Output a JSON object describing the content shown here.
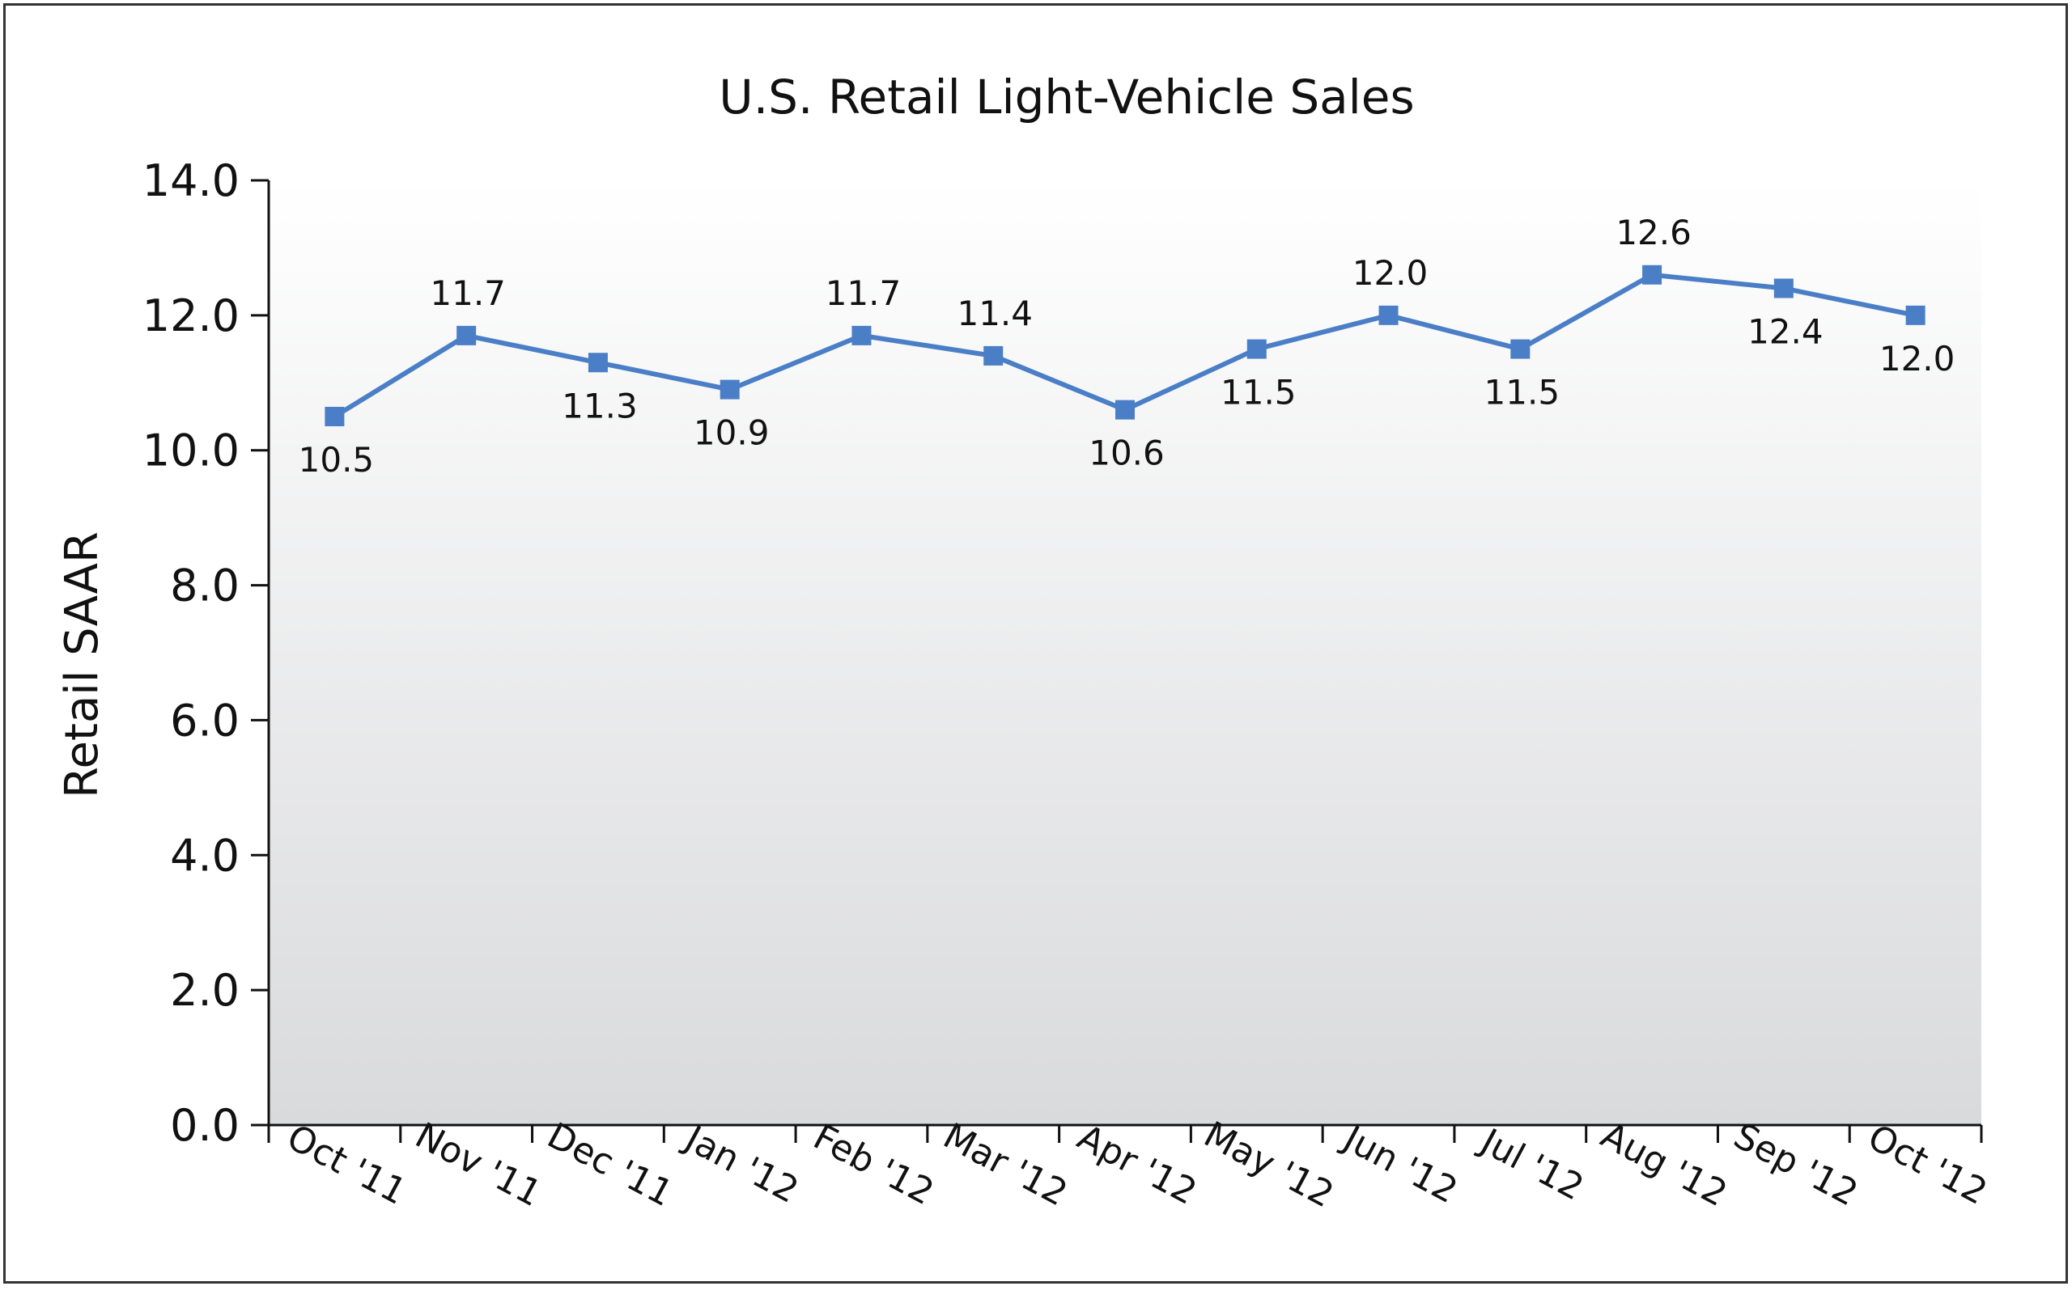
{
  "chart_data": {
    "type": "line",
    "title": "U.S. Retail Light-Vehicle Sales",
    "xlabel": "",
    "ylabel": "Retail SAAR",
    "ylim": [
      0,
      14
    ],
    "yticks": [
      "0.0",
      "2.0",
      "4.0",
      "6.0",
      "8.0",
      "10.0",
      "12.0",
      "14.0"
    ],
    "categories": [
      "Oct '11",
      "Nov '11",
      "Dec '11",
      "Jan '12",
      "Feb '12",
      "Mar '12",
      "Apr '12",
      "May '12",
      "Jun '12",
      "Jul '12",
      "Aug '12",
      "Sep '12",
      "Oct '12"
    ],
    "series": [
      {
        "values": [
          10.5,
          11.7,
          11.3,
          10.9,
          11.7,
          11.4,
          10.6,
          11.5,
          12.0,
          11.5,
          12.6,
          12.4,
          12.0
        ],
        "labels": [
          "10.5",
          "11.7",
          "11.3",
          "10.9",
          "11.7",
          "11.4",
          "10.6",
          "11.5",
          "12.0",
          "11.5",
          "12.6",
          "12.4",
          "12.0"
        ],
        "label_positions": [
          "below",
          "above",
          "below",
          "below",
          "above",
          "above",
          "below",
          "below",
          "above",
          "below",
          "above",
          "below",
          "below"
        ],
        "color": "#4a7fc7"
      }
    ],
    "grid": false,
    "legend": "none",
    "background": "vertical gradient white to light gray"
  }
}
